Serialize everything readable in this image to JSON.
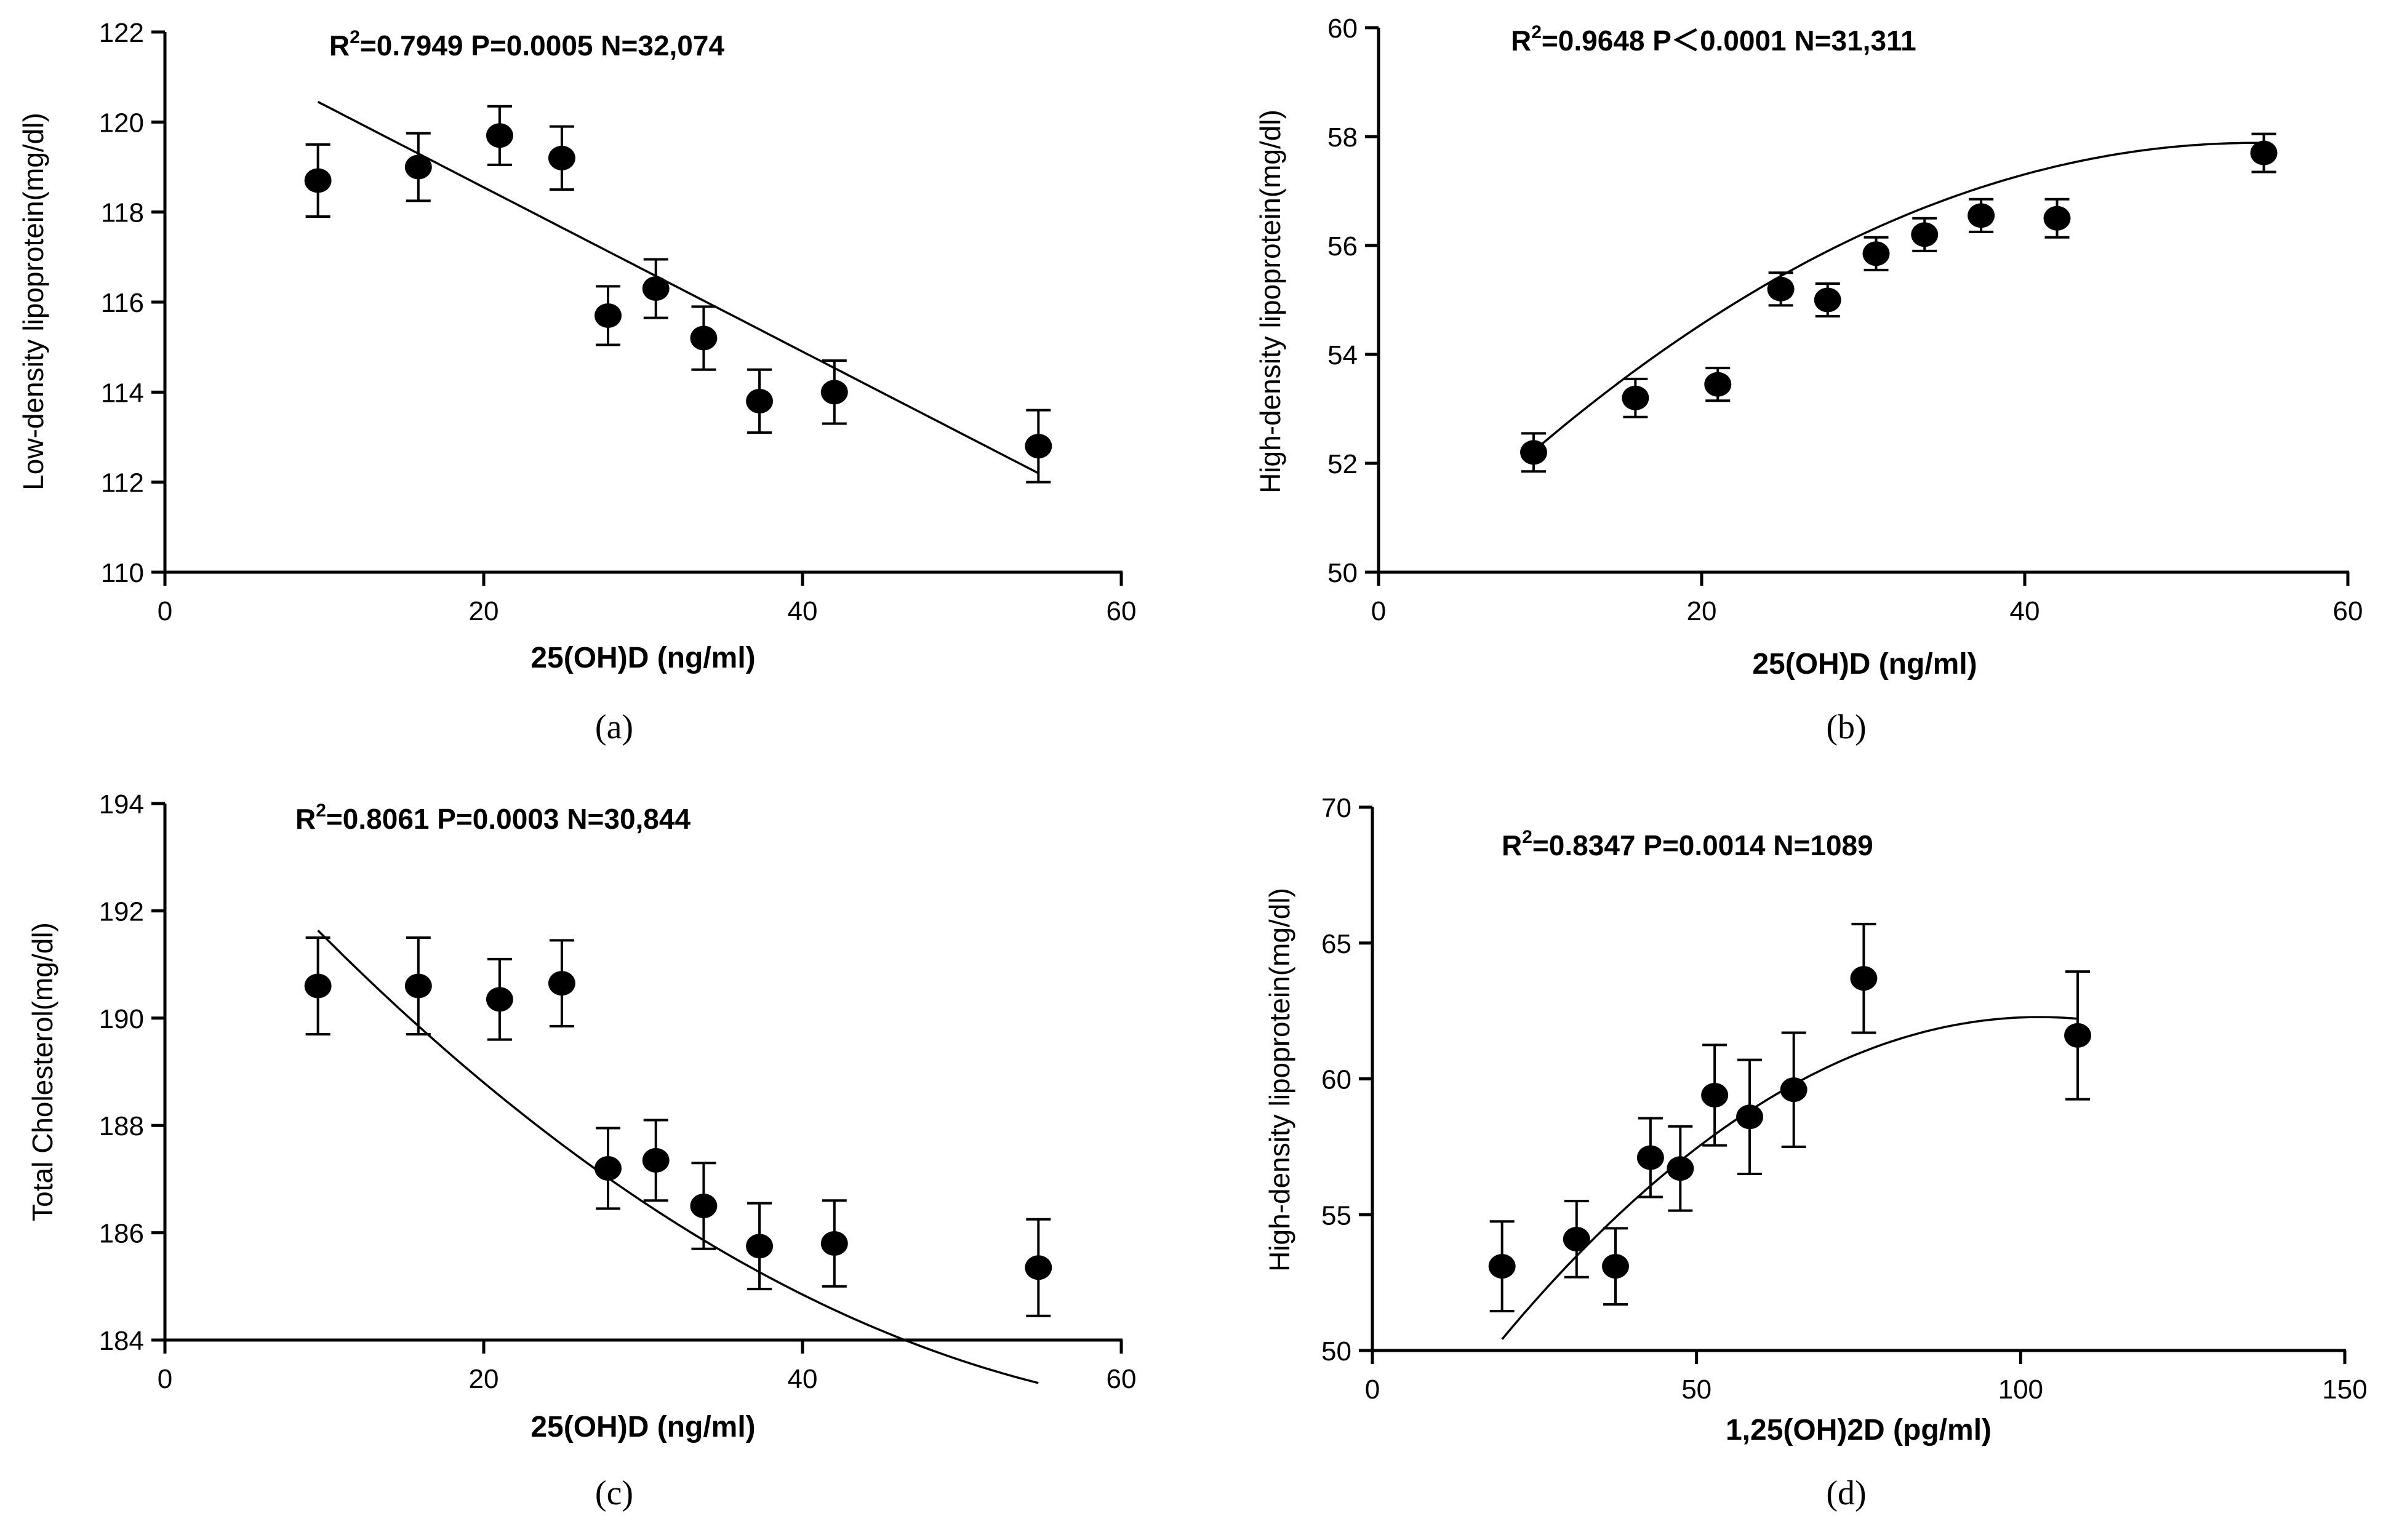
{
  "chart_data": [
    {
      "type": "scatter",
      "panel_label": "(a)",
      "title": "",
      "stat_text": "=0.7949 P=0.0005 N=32,074",
      "stat_r": "R",
      "stat_sup": "2",
      "xlabel": "25(OH)D (ng/ml)",
      "ylabel": "Low-density lipoprotein(mg/dl)",
      "xlim": [
        0,
        60
      ],
      "ylim": [
        110,
        122
      ],
      "xticks": [
        0,
        20,
        40,
        60
      ],
      "yticks": [
        110,
        112,
        114,
        116,
        118,
        120,
        122
      ],
      "grid": false,
      "x": [
        9.6,
        15.9,
        21.0,
        24.9,
        27.8,
        30.8,
        33.8,
        37.3,
        42.0,
        54.8
      ],
      "y": [
        118.7,
        119.0,
        119.7,
        119.2,
        115.7,
        116.3,
        115.2,
        113.8,
        114.0,
        112.8
      ],
      "err": [
        0.8,
        0.75,
        0.65,
        0.7,
        0.65,
        0.65,
        0.7,
        0.7,
        0.7,
        0.8
      ],
      "fit": {
        "kind": "linear",
        "x": [
          9.6,
          54.8
        ],
        "coef": [
          122.2,
          -0.1825
        ]
      }
    },
    {
      "type": "scatter",
      "panel_label": "(b)",
      "title": "",
      "stat_text": "=0.9648 P＜0.0001 N=31,311",
      "stat_r": "R",
      "stat_sup": "2",
      "xlabel": "25(OH)D (ng/ml)",
      "ylabel": "High-density lipoprotein(mg/dl)",
      "xlim": [
        0,
        60
      ],
      "ylim": [
        50,
        60
      ],
      "xticks": [
        0,
        20,
        40,
        60
      ],
      "yticks": [
        50,
        52,
        54,
        56,
        58,
        60
      ],
      "grid": false,
      "x": [
        9.6,
        15.9,
        21.0,
        24.9,
        27.8,
        30.8,
        33.8,
        37.3,
        42.0,
        54.8
      ],
      "y": [
        52.2,
        53.2,
        53.45,
        55.2,
        55.0,
        55.85,
        56.2,
        56.55,
        56.5,
        57.7
      ],
      "err": [
        0.35,
        0.35,
        0.3,
        0.3,
        0.3,
        0.3,
        0.3,
        0.3,
        0.35,
        0.35
      ],
      "fit": {
        "kind": "quadratic",
        "x": [
          9.6,
          54.8
        ],
        "coef": [
          49.53,
          0.3079,
          -0.002837
        ]
      }
    },
    {
      "type": "scatter",
      "panel_label": "(c)",
      "title": "",
      "stat_text": "=0.8061 P=0.0003 N=30,844",
      "stat_r": "R",
      "stat_sup": "2",
      "xlabel": "25(OH)D (ng/ml)",
      "ylabel": "Total Cholesterol(mg/dl)",
      "xlim": [
        0,
        60
      ],
      "ylim": [
        184,
        194
      ],
      "xticks": [
        0,
        20,
        40,
        60
      ],
      "yticks": [
        184,
        186,
        188,
        190,
        192,
        194
      ],
      "grid": false,
      "x": [
        9.6,
        15.9,
        21.0,
        24.9,
        27.8,
        30.8,
        33.8,
        37.3,
        42.0,
        54.8
      ],
      "y": [
        190.6,
        190.6,
        190.35,
        190.65,
        187.2,
        187.35,
        186.5,
        185.75,
        185.8,
        185.35
      ],
      "err": [
        0.9,
        0.9,
        0.75,
        0.8,
        0.75,
        0.75,
        0.8,
        0.8,
        0.8,
        0.9
      ],
      "fit": {
        "kind": "quadratic",
        "x": [
          9.6,
          54.8
        ],
        "coef": [
          194.73,
          -0.3461,
          0.002476
        ]
      }
    },
    {
      "type": "scatter",
      "panel_label": "(d)",
      "title": "",
      "stat_text": "=0.8347 P=0.0014 N=1089",
      "stat_r": "R",
      "stat_sup": "2",
      "xlabel": "1,25(OH)2D (pg/ml)",
      "ylabel": "High-density lipoprotein(mg/dl)",
      "xlim": [
        0,
        150
      ],
      "ylim": [
        50,
        70
      ],
      "xticks": [
        0,
        50,
        100,
        150
      ],
      "yticks": [
        50,
        55,
        60,
        65,
        70
      ],
      "grid": false,
      "x": [
        20.0,
        31.5,
        37.5,
        42.9,
        47.5,
        52.8,
        58.2,
        65.0,
        75.8,
        108.8
      ],
      "y": [
        53.1,
        54.1,
        53.1,
        57.1,
        56.7,
        59.4,
        58.6,
        59.6,
        63.7,
        61.6
      ],
      "err": [
        1.65,
        1.4,
        1.4,
        1.45,
        1.55,
        1.85,
        2.1,
        2.1,
        2.0,
        2.35
      ],
      "fit": {
        "kind": "quadratic",
        "x": [
          20.0,
          108.8
        ],
        "coef": [
          44.0,
          0.3553,
          -0.001727
        ]
      }
    }
  ]
}
